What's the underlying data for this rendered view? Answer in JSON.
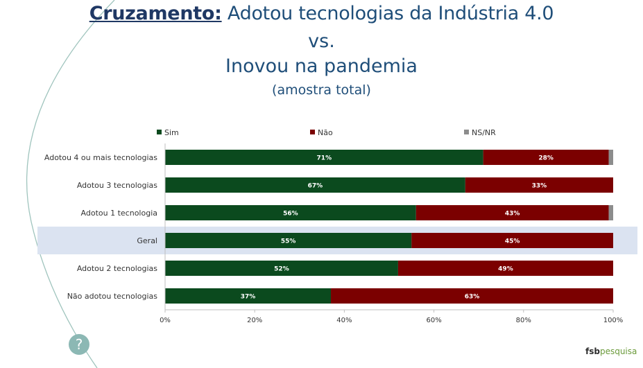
{
  "title": {
    "lead": "Cruzamento:",
    "rest": "Adotou tecnologias da Indústria 4.0",
    "line2": "vs.",
    "line3": "Inovou na pandemia",
    "line4": "(amostra total)"
  },
  "colors": {
    "sim": "#0b4a1e",
    "nao": "#7b0000",
    "nsnr": "#8c8c8c",
    "highlight": "#dbe3f1",
    "title": "#1f4e79",
    "deco_line": "#9fc4bd"
  },
  "chart_data": {
    "type": "bar",
    "orientation": "horizontal",
    "stacked": true,
    "categories": [
      "Adotou 4  ou mais tecnologias",
      "Adotou 3 tecnologias",
      "Adotou 1 tecnologia",
      "Geral",
      "Adotou 2 tecnologias",
      "Não adotou tecnologias"
    ],
    "highlighted_category": "Geral",
    "series": [
      {
        "name": "Sim",
        "color": "#0b4a1e",
        "values": [
          71,
          67,
          56,
          55,
          52,
          37
        ],
        "labels": [
          "71%",
          "67%",
          "56%",
          "55%",
          "52%",
          "37%"
        ]
      },
      {
        "name": "Não",
        "color": "#7b0000",
        "values": [
          28,
          33,
          43,
          45,
          49,
          63
        ],
        "labels": [
          "28%",
          "33%",
          "43%",
          "45%",
          "49%",
          "63%"
        ]
      },
      {
        "name": "NS/NR",
        "color": "#8c8c8c",
        "values": [
          1,
          0,
          1,
          0,
          0,
          0
        ],
        "labels": [
          "",
          "",
          "",
          "",
          "",
          ""
        ]
      }
    ],
    "xlim": [
      0,
      100
    ],
    "xticks": [
      0,
      20,
      40,
      60,
      80,
      100
    ],
    "xtick_labels": [
      "0%",
      "20%",
      "40%",
      "60%",
      "80%",
      "100%"
    ],
    "legend_position": "top",
    "grid": false
  },
  "help_button": {
    "label": "?"
  },
  "logo": {
    "part1": "fsb",
    "part2": "pesquisa"
  }
}
